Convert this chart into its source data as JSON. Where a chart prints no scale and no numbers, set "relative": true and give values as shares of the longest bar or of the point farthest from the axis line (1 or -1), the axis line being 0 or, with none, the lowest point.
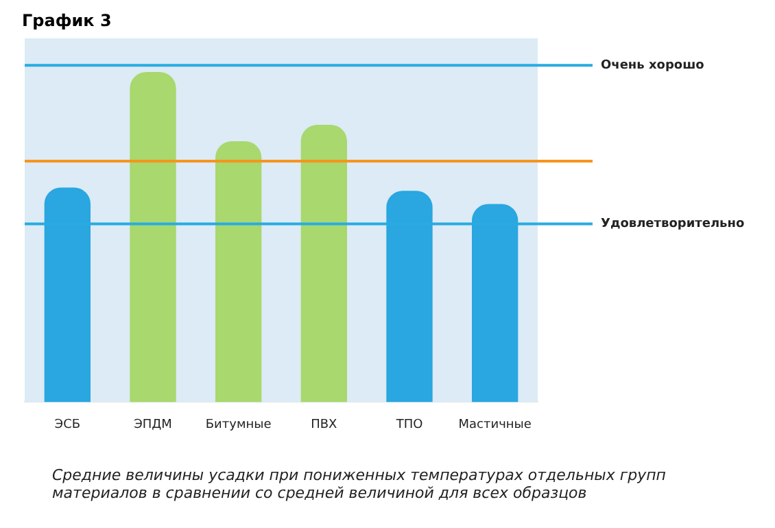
{
  "chart_data": {
    "type": "bar",
    "title": "График 3",
    "relative": true,
    "categories": [
      "ЭСБ",
      "ЭПДМ",
      "Битумные",
      "ПВХ",
      "ТПО",
      "Мастичные"
    ],
    "values": [
      0.65,
      1,
      0.79,
      0.84,
      0.64,
      0.6
    ],
    "colors": [
      "#2aa6e0",
      "#a8d86e",
      "#a8d86e",
      "#a8d86e",
      "#2aa6e0",
      "#2aa6e0"
    ],
    "ref_lines": [
      {
        "axis": "y",
        "value": 1.02,
        "label": "Очень хорошо",
        "color": "#29abe2"
      },
      {
        "axis": "y",
        "value": 0.73,
        "label": null,
        "color": "#f7941d"
      },
      {
        "axis": "y",
        "value": 0.54,
        "label": "Удовлетворительно",
        "color": "#29abe2"
      }
    ],
    "grid": false,
    "legend": false,
    "annotations": [
      "Средние величины усадки при пониженных температурах отдельных групп материалов в сравнении со средней величиной для всех образцов"
    ]
  }
}
